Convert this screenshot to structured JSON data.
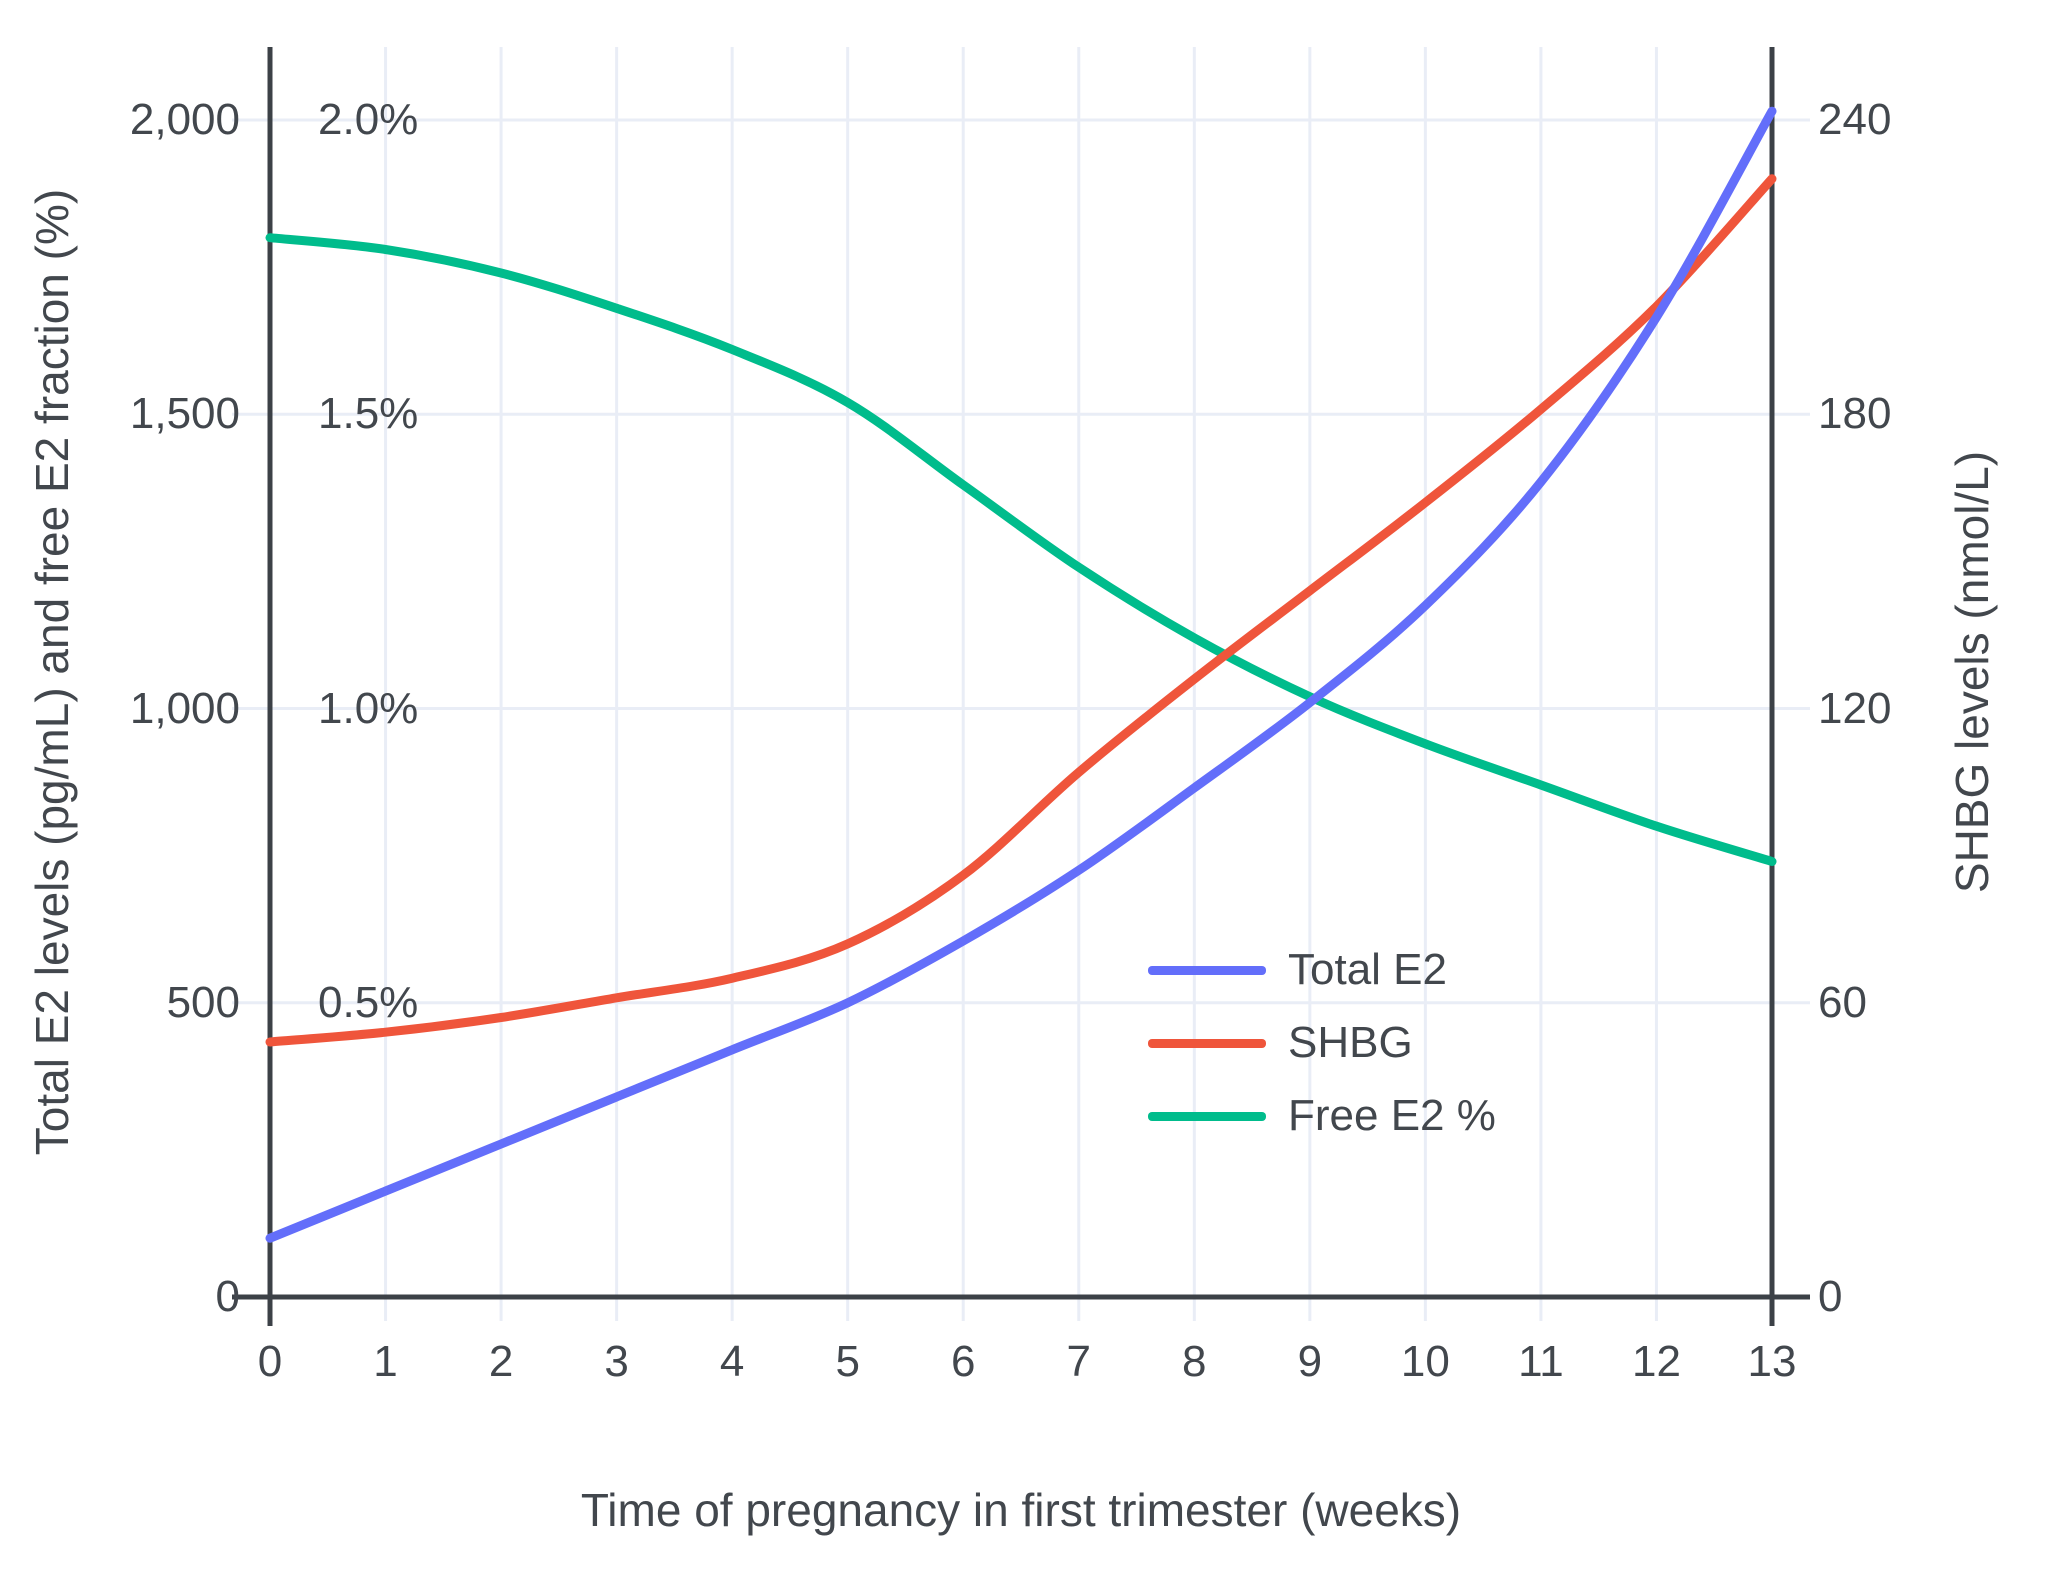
{
  "chart_data": {
    "type": "line",
    "title": "",
    "xlabel": "Time of pregnancy in first trimester (weeks)",
    "x": [
      0,
      1,
      2,
      3,
      4,
      5,
      6,
      7,
      8,
      9,
      10,
      11,
      12,
      13
    ],
    "x_axis": {
      "ticks": [
        {
          "label": "0",
          "value": 0
        },
        {
          "label": "1",
          "value": 1
        },
        {
          "label": "2",
          "value": 2
        },
        {
          "label": "3",
          "value": 3
        },
        {
          "label": "4",
          "value": 4
        },
        {
          "label": "5",
          "value": 5
        },
        {
          "label": "6",
          "value": 6
        },
        {
          "label": "7",
          "value": 7
        },
        {
          "label": "8",
          "value": 8
        },
        {
          "label": "9",
          "value": 9
        },
        {
          "label": "10",
          "value": 10
        },
        {
          "label": "11",
          "value": 11
        },
        {
          "label": "12",
          "value": 12
        },
        {
          "label": "13",
          "value": 13
        }
      ]
    },
    "left_axis": {
      "title": "Total E2 levels (pg/mL) and free E2 fraction (%)",
      "range": [
        0,
        2100
      ],
      "ticks": [
        {
          "label": "0",
          "value": 0
        },
        {
          "label": "500",
          "value": 500
        },
        {
          "label": "1,000",
          "value": 1000
        },
        {
          "label": "1,500",
          "value": 1500
        },
        {
          "label": "2,000",
          "value": 2000
        }
      ],
      "percent_ticks": [
        {
          "label": "0.5%",
          "value": 500
        },
        {
          "label": "1.0%",
          "value": 1000
        },
        {
          "label": "1.5%",
          "value": 1500
        },
        {
          "label": "2.0%",
          "value": 2000
        }
      ]
    },
    "right_axis": {
      "title": "SHBG levels (nmol/L)",
      "range": [
        0,
        252
      ],
      "ticks": [
        {
          "label": "0",
          "value": 0
        },
        {
          "label": "60",
          "value": 60
        },
        {
          "label": "120",
          "value": 120
        },
        {
          "label": "180",
          "value": 180
        },
        {
          "label": "240",
          "value": 240
        }
      ]
    },
    "series": [
      {
        "name": "Free E2 %",
        "axis": "percent",
        "color": "#00BC8C",
        "values": [
          1.8,
          1.78,
          1.74,
          1.68,
          1.61,
          1.52,
          1.38,
          1.24,
          1.12,
          1.02,
          0.94,
          0.87,
          0.8,
          0.74
        ]
      },
      {
        "name": "SHBG",
        "axis": "right",
        "color": "#EF553B",
        "values": [
          52,
          54,
          57,
          61,
          65,
          72,
          86,
          107,
          126,
          144,
          162,
          181,
          202,
          228
        ]
      },
      {
        "name": "Total E2",
        "axis": "left",
        "color": "#636EFA",
        "values": [
          100,
          180,
          260,
          340,
          420,
          500,
          605,
          725,
          865,
          1010,
          1175,
          1385,
          1665,
          2015
        ]
      }
    ],
    "legend_order": [
      "Total E2",
      "SHBG",
      "Free E2 %"
    ],
    "grid": true,
    "legend_position": "inside-right-middle"
  },
  "colors": {
    "axis": "#3C4147",
    "grid": "#E9EDF6",
    "text": "#42474D",
    "background": "#FFFFFF"
  }
}
